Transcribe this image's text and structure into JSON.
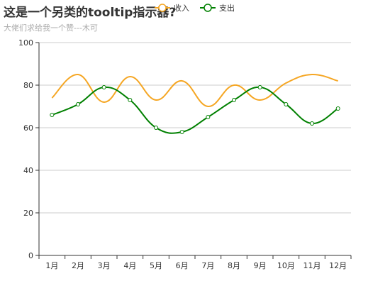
{
  "chart_data": {
    "type": "line",
    "title": "这是一个另类的tooltip指示器?",
    "subtitle": "大佬们求给我一个赞---木可",
    "categories": [
      "1月",
      "2月",
      "3月",
      "4月",
      "5月",
      "6月",
      "7月",
      "8月",
      "9月",
      "10月",
      "11月",
      "12月"
    ],
    "ylim": [
      0,
      100
    ],
    "yticks": [
      0,
      20,
      40,
      60,
      80,
      100
    ],
    "grid": true,
    "legend_position": "top",
    "series": [
      {
        "name": "收入",
        "color": "#f5a623",
        "smooth": true,
        "show_symbols": false,
        "values": [
          74,
          85,
          72,
          84,
          73,
          82,
          70,
          80,
          73,
          81,
          85,
          82
        ]
      },
      {
        "name": "支出",
        "color": "#008000",
        "smooth": true,
        "show_symbols": true,
        "values": [
          66,
          71,
          79,
          73,
          60,
          58,
          65,
          73,
          79,
          71,
          62,
          69
        ]
      }
    ]
  }
}
